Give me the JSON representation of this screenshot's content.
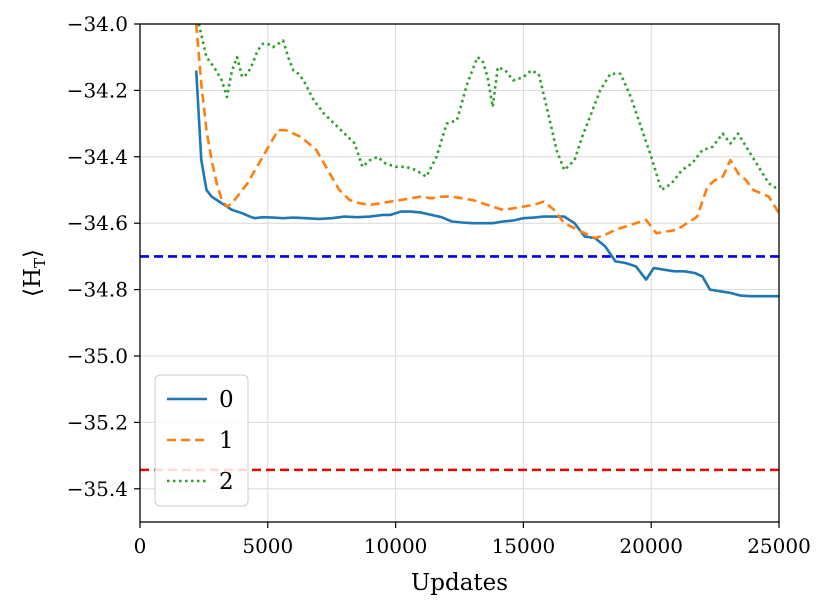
{
  "chart_data": {
    "type": "line",
    "xlabel": "Updates",
    "ylabel": "⟨H_T⟩",
    "ylabel_main": "⟨H",
    "ylabel_sub": "T",
    "ylabel_close": "⟩",
    "xlim": [
      0,
      25000
    ],
    "ylim": [
      -35.5,
      -34.0
    ],
    "x_ticks": [
      0,
      5000,
      10000,
      15000,
      20000,
      25000
    ],
    "x_tick_labels": [
      "0",
      "5000",
      "10000",
      "15000",
      "20000",
      "25000"
    ],
    "y_ticks": [
      -35.4,
      -35.2,
      -35.0,
      -34.8,
      -34.6,
      -34.4,
      -34.2,
      -34.0
    ],
    "y_tick_labels": [
      "−35.4",
      "−35.2",
      "−35.0",
      "−34.8",
      "−34.6",
      "−34.4",
      "−34.2",
      "−34.0"
    ],
    "grid": true,
    "legend": {
      "position": "lower-left"
    },
    "hlines": [
      {
        "y": -34.7,
        "color": "#0000ee",
        "style": "dashed"
      },
      {
        "y": -35.343,
        "color": "#ee0000",
        "style": "dashed"
      }
    ],
    "series": [
      {
        "name": "0",
        "color": "#1f77b4",
        "style": "solid",
        "x": [
          2200,
          2400,
          2600,
          2800,
          3000,
          3300,
          3600,
          4000,
          4300,
          4500,
          4800,
          5200,
          5600,
          6000,
          6500,
          7000,
          7500,
          8000,
          8500,
          9000,
          9500,
          9800,
          10200,
          10600,
          11000,
          11400,
          11800,
          12200,
          12600,
          13000,
          13400,
          13800,
          14200,
          14600,
          15000,
          15400,
          15800,
          16200,
          16600,
          17000,
          17400,
          17800,
          18200,
          18600,
          19000,
          19400,
          19800,
          20100,
          20500,
          20900,
          21300,
          21700,
          22000,
          22300,
          22700,
          23100,
          23500,
          23900,
          24300,
          24700,
          25000
        ],
        "values": [
          -34.14,
          -34.41,
          -34.5,
          -34.52,
          -34.53,
          -34.545,
          -34.56,
          -34.57,
          -34.58,
          -34.585,
          -34.582,
          -34.583,
          -34.585,
          -34.583,
          -34.585,
          -34.587,
          -34.585,
          -34.58,
          -34.582,
          -34.58,
          -34.575,
          -34.575,
          -34.565,
          -34.565,
          -34.568,
          -34.575,
          -34.582,
          -34.595,
          -34.598,
          -34.6,
          -34.6,
          -34.6,
          -34.595,
          -34.592,
          -34.585,
          -34.583,
          -34.58,
          -34.58,
          -34.58,
          -34.6,
          -34.64,
          -34.645,
          -34.67,
          -34.715,
          -34.72,
          -34.73,
          -34.77,
          -34.735,
          -34.74,
          -34.745,
          -34.745,
          -34.75,
          -34.76,
          -34.8,
          -34.805,
          -34.81,
          -34.818,
          -34.82,
          -34.82,
          -34.82,
          -34.82
        ]
      },
      {
        "name": "1",
        "color": "#ff7f0e",
        "style": "dashed",
        "x": [
          2200,
          2400,
          2600,
          2800,
          3000,
          3200,
          3400,
          3600,
          3900,
          4200,
          4500,
          4800,
          5100,
          5400,
          5700,
          6000,
          6300,
          6600,
          6900,
          7200,
          7500,
          7800,
          8200,
          8600,
          9000,
          9400,
          9800,
          10200,
          10600,
          11000,
          11400,
          11800,
          12200,
          12600,
          13000,
          13400,
          13800,
          14200,
          14600,
          15000,
          15400,
          15800,
          16200,
          16600,
          17000,
          17400,
          17800,
          18200,
          18600,
          19000,
          19400,
          19800,
          20200,
          20600,
          21000,
          21400,
          21800,
          22200,
          22500,
          22800,
          23100,
          23400,
          23700,
          24000,
          24300,
          24600,
          25000
        ],
        "values": [
          -34.0,
          -34.18,
          -34.32,
          -34.41,
          -34.48,
          -34.53,
          -34.55,
          -34.54,
          -34.51,
          -34.48,
          -34.44,
          -34.4,
          -34.36,
          -34.32,
          -34.32,
          -34.33,
          -34.34,
          -34.36,
          -34.38,
          -34.42,
          -34.46,
          -34.5,
          -34.53,
          -34.54,
          -34.545,
          -34.54,
          -34.535,
          -34.53,
          -34.525,
          -34.52,
          -34.525,
          -34.52,
          -34.52,
          -34.525,
          -34.53,
          -34.54,
          -34.55,
          -34.56,
          -34.555,
          -34.55,
          -34.545,
          -34.535,
          -34.56,
          -34.6,
          -34.615,
          -34.63,
          -34.645,
          -34.635,
          -34.62,
          -34.61,
          -34.6,
          -34.59,
          -34.63,
          -34.625,
          -34.62,
          -34.6,
          -34.58,
          -34.49,
          -34.47,
          -34.46,
          -34.41,
          -34.45,
          -34.47,
          -34.5,
          -34.51,
          -34.52,
          -34.57
        ]
      },
      {
        "name": "2",
        "color": "#2ca02c",
        "style": "dotted",
        "x": [
          2300,
          2600,
          2900,
          3200,
          3400,
          3600,
          3800,
          4000,
          4200,
          4400,
          4600,
          4800,
          5000,
          5200,
          5400,
          5600,
          5800,
          6000,
          6200,
          6400,
          6800,
          7200,
          7600,
          8000,
          8400,
          8700,
          9000,
          9300,
          9600,
          10000,
          10400,
          10800,
          11200,
          11600,
          12000,
          12400,
          12800,
          13200,
          13400,
          13600,
          13800,
          14000,
          14300,
          14600,
          15000,
          15300,
          15600,
          16000,
          16300,
          16600,
          17000,
          17300,
          17600,
          18000,
          18400,
          18800,
          19200,
          19600,
          20000,
          20400,
          20800,
          21200,
          21600,
          22000,
          22400,
          22800,
          23100,
          23400,
          23800,
          24200,
          24600,
          25000
        ],
        "values": [
          -34.0,
          -34.1,
          -34.13,
          -34.17,
          -34.22,
          -34.14,
          -34.1,
          -34.16,
          -34.15,
          -34.12,
          -34.08,
          -34.06,
          -34.06,
          -34.07,
          -34.06,
          -34.05,
          -34.1,
          -34.14,
          -34.15,
          -34.17,
          -34.23,
          -34.27,
          -34.3,
          -34.33,
          -34.36,
          -34.43,
          -34.41,
          -34.4,
          -34.42,
          -34.43,
          -34.43,
          -34.44,
          -34.46,
          -34.4,
          -34.3,
          -34.29,
          -34.18,
          -34.1,
          -34.11,
          -34.16,
          -34.25,
          -34.13,
          -34.14,
          -34.17,
          -34.16,
          -34.14,
          -34.15,
          -34.28,
          -34.38,
          -34.44,
          -34.41,
          -34.34,
          -34.28,
          -34.2,
          -34.15,
          -34.15,
          -34.22,
          -34.31,
          -34.4,
          -34.5,
          -34.48,
          -34.44,
          -34.42,
          -34.38,
          -34.37,
          -34.33,
          -34.36,
          -34.33,
          -34.38,
          -34.43,
          -34.48,
          -34.5
        ]
      }
    ]
  }
}
